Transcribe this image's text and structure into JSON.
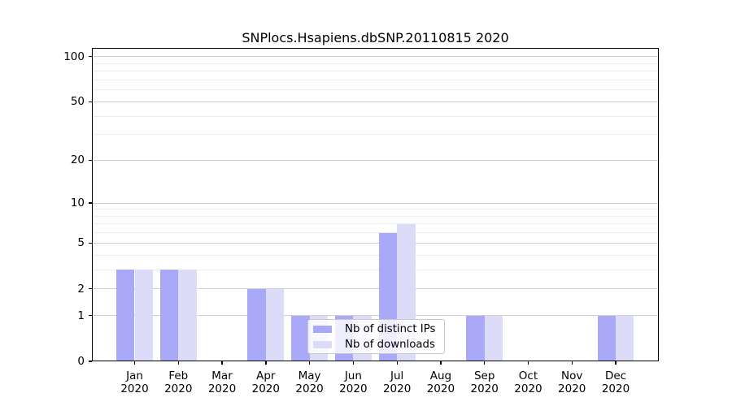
{
  "chart_data": {
    "type": "bar",
    "title": "SNPlocs.Hsapiens.dbSNP.20110815 2020",
    "categories": [
      "Jan",
      "Feb",
      "Mar",
      "Apr",
      "May",
      "Jun",
      "Jul",
      "Aug",
      "Sep",
      "Oct",
      "Nov",
      "Dec"
    ],
    "year_label": "2020",
    "series": [
      {
        "name": "Nb of distinct IPs",
        "color": "#a9a9f7",
        "values": [
          3,
          3,
          0,
          2,
          1,
          1,
          6,
          0,
          1,
          0,
          0,
          1
        ]
      },
      {
        "name": "Nb of downloads",
        "color": "#dcdcf9",
        "values": [
          3,
          3,
          0,
          2,
          1,
          1,
          7,
          0,
          1,
          0,
          0,
          1
        ]
      }
    ],
    "y_axis": {
      "scale": "log1p",
      "ticks": [
        0,
        1,
        2,
        5,
        10,
        20,
        50,
        100
      ],
      "minor_gridlines": [
        3,
        4,
        6,
        7,
        8,
        9,
        30,
        40,
        60,
        70,
        80,
        90
      ],
      "range": [
        0,
        114
      ]
    },
    "x_axis": {
      "tick_per_month": true
    },
    "legend": {
      "position": "lower center"
    },
    "colors": {
      "bar_distinct_ips": "#a9a9f7",
      "bar_downloads": "#dcdcf9",
      "grid_major": "#cfcfcf",
      "grid_minor": "#ececec",
      "axis": "#000000",
      "legend_border": "#c9c9c9",
      "legend_background": "rgba(255,255,255,0.8)"
    }
  }
}
